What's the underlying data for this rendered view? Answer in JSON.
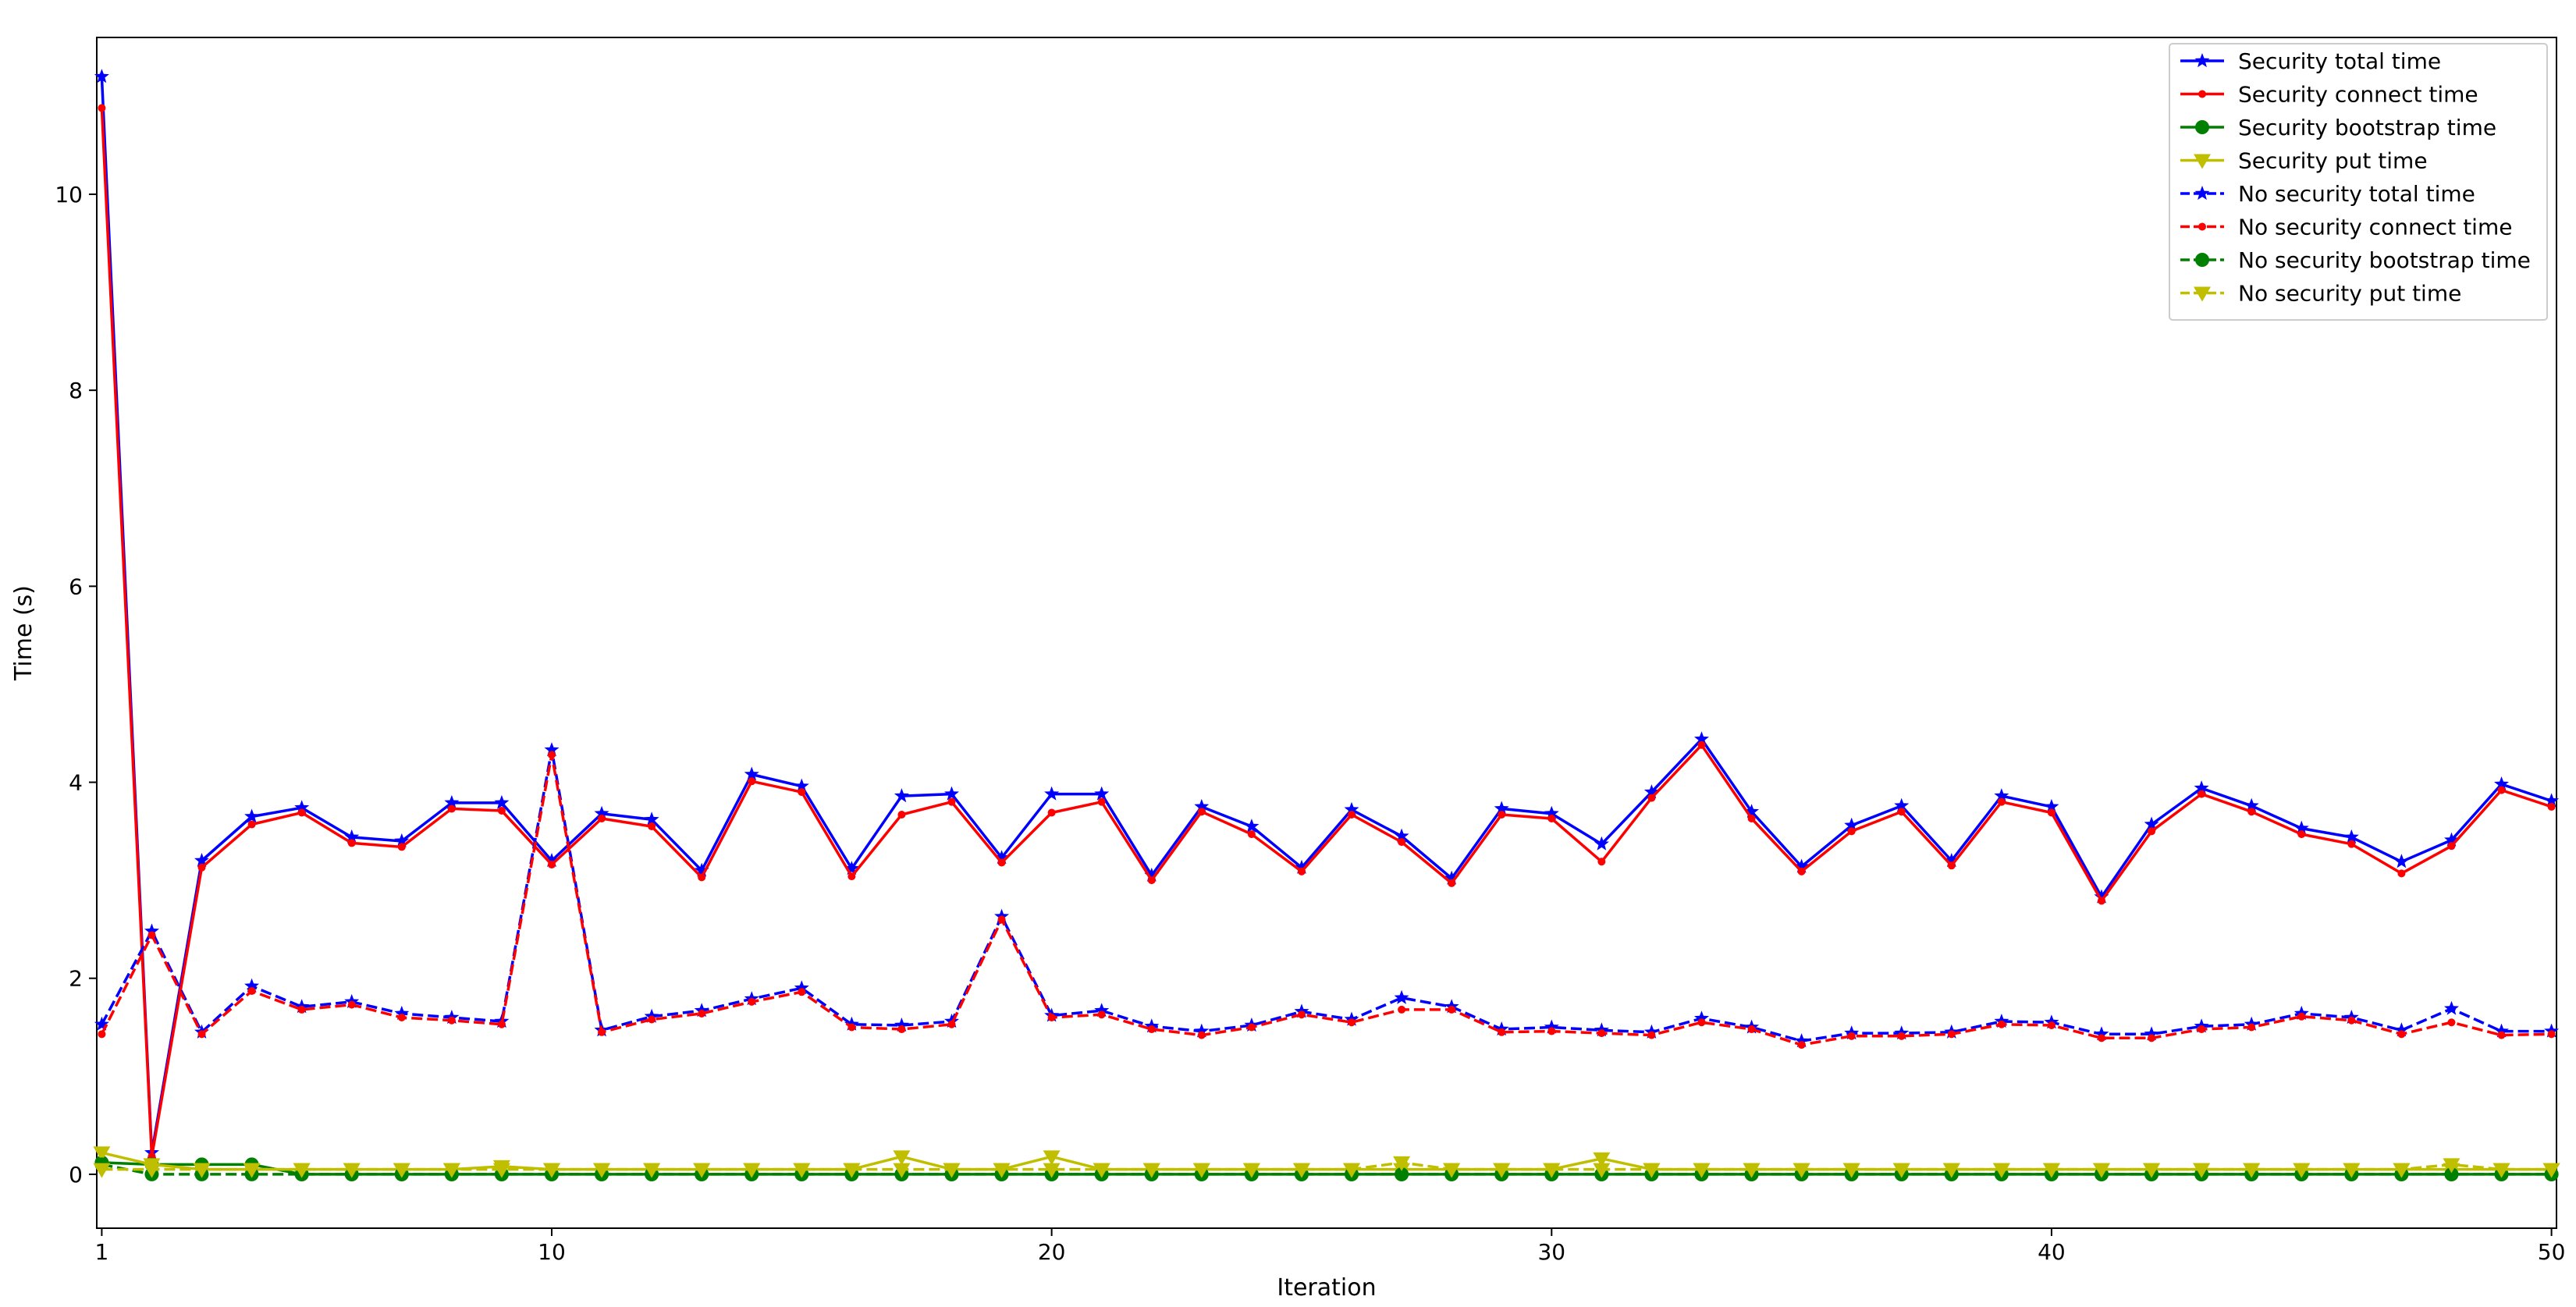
{
  "chart_data": {
    "type": "line",
    "title": "",
    "xlabel": "Iteration",
    "ylabel": "Time (s)",
    "xlim": [
      0.9,
      50.1
    ],
    "ylim": [
      -0.55,
      11.6
    ],
    "xticks": [
      1,
      10,
      20,
      30,
      40,
      50
    ],
    "yticks": [
      0,
      2,
      4,
      6,
      8,
      10
    ],
    "grid": false,
    "legend_position": "top-right",
    "x": [
      1,
      2,
      3,
      4,
      5,
      6,
      7,
      8,
      9,
      10,
      11,
      12,
      13,
      14,
      15,
      16,
      17,
      18,
      19,
      20,
      21,
      22,
      23,
      24,
      25,
      26,
      27,
      28,
      29,
      30,
      31,
      32,
      33,
      34,
      35,
      36,
      37,
      38,
      39,
      40,
      41,
      42,
      43,
      44,
      45,
      46,
      47,
      48,
      49,
      50
    ],
    "series": [
      {
        "name": "Security total time",
        "color": "#0000ff",
        "dash": "solid",
        "marker": "star",
        "values": [
          11.2,
          0.22,
          3.2,
          3.65,
          3.74,
          3.44,
          3.4,
          3.79,
          3.79,
          3.2,
          3.68,
          3.62,
          3.1,
          4.08,
          3.96,
          3.12,
          3.86,
          3.88,
          3.23,
          3.88,
          3.88,
          3.05,
          3.75,
          3.55,
          3.13,
          3.72,
          3.45,
          3.02,
          3.73,
          3.68,
          3.37,
          3.9,
          4.44,
          3.7,
          3.14,
          3.56,
          3.76,
          3.2,
          3.86,
          3.75,
          2.83,
          3.57,
          3.94,
          3.76,
          3.53,
          3.44,
          3.19,
          3.41,
          3.98,
          3.81
        ]
      },
      {
        "name": "Security connect time",
        "color": "#ff0000",
        "dash": "solid",
        "marker": "point",
        "values": [
          10.88,
          0.18,
          3.13,
          3.57,
          3.69,
          3.38,
          3.34,
          3.73,
          3.71,
          3.16,
          3.63,
          3.55,
          3.03,
          4.01,
          3.9,
          3.04,
          3.67,
          3.8,
          3.18,
          3.69,
          3.8,
          3.0,
          3.7,
          3.47,
          3.09,
          3.67,
          3.39,
          2.97,
          3.67,
          3.63,
          3.19,
          3.84,
          4.38,
          3.63,
          3.09,
          3.5,
          3.7,
          3.15,
          3.8,
          3.69,
          2.79,
          3.5,
          3.88,
          3.7,
          3.47,
          3.37,
          3.07,
          3.35,
          3.92,
          3.75
        ]
      },
      {
        "name": "Security bootstrap time",
        "color": "#008000",
        "dash": "solid",
        "marker": "circle",
        "values": [
          0.12,
          0.1,
          0.1,
          0.1,
          0.0,
          0.0,
          0.0,
          0.0,
          0.0,
          0.0,
          0.0,
          0.0,
          0.0,
          0.0,
          0.0,
          0.0,
          0.0,
          0.0,
          0.0,
          0.0,
          0.0,
          0.0,
          0.0,
          0.0,
          0.0,
          0.0,
          0.0,
          0.0,
          0.0,
          0.0,
          0.0,
          0.0,
          0.0,
          0.0,
          0.0,
          0.0,
          0.0,
          0.0,
          0.0,
          0.0,
          0.0,
          0.0,
          0.0,
          0.0,
          0.0,
          0.0,
          0.0,
          0.0,
          0.0,
          0.0
        ]
      },
      {
        "name": "Security put time",
        "color": "#bfbf00",
        "dash": "solid",
        "marker": "triangle-down",
        "values": [
          0.22,
          0.1,
          0.05,
          0.05,
          0.05,
          0.05,
          0.05,
          0.05,
          0.08,
          0.05,
          0.05,
          0.05,
          0.05,
          0.05,
          0.05,
          0.05,
          0.18,
          0.05,
          0.05,
          0.18,
          0.05,
          0.05,
          0.05,
          0.05,
          0.05,
          0.05,
          0.05,
          0.05,
          0.05,
          0.05,
          0.16,
          0.05,
          0.05,
          0.05,
          0.05,
          0.05,
          0.05,
          0.05,
          0.05,
          0.05,
          0.05,
          0.05,
          0.05,
          0.05,
          0.05,
          0.05,
          0.05,
          0.05,
          0.05,
          0.05
        ]
      },
      {
        "name": "No security total time",
        "color": "#0000ff",
        "dash": "dashed",
        "marker": "star",
        "values": [
          1.53,
          2.48,
          1.45,
          1.92,
          1.71,
          1.76,
          1.64,
          1.6,
          1.56,
          4.33,
          1.47,
          1.61,
          1.67,
          1.79,
          1.9,
          1.53,
          1.52,
          1.56,
          2.63,
          1.62,
          1.67,
          1.51,
          1.46,
          1.52,
          1.66,
          1.58,
          1.8,
          1.71,
          1.48,
          1.5,
          1.47,
          1.45,
          1.59,
          1.5,
          1.36,
          1.44,
          1.44,
          1.45,
          1.56,
          1.55,
          1.43,
          1.43,
          1.51,
          1.53,
          1.64,
          1.6,
          1.47,
          1.69,
          1.46,
          1.46
        ]
      },
      {
        "name": "No security connect time",
        "color": "#ff0000",
        "dash": "dashed",
        "marker": "point",
        "values": [
          1.43,
          2.44,
          1.43,
          1.87,
          1.68,
          1.73,
          1.6,
          1.57,
          1.53,
          4.28,
          1.45,
          1.58,
          1.64,
          1.76,
          1.86,
          1.5,
          1.48,
          1.53,
          2.6,
          1.6,
          1.63,
          1.48,
          1.42,
          1.5,
          1.63,
          1.55,
          1.68,
          1.68,
          1.45,
          1.46,
          1.44,
          1.42,
          1.55,
          1.48,
          1.32,
          1.41,
          1.41,
          1.43,
          1.53,
          1.52,
          1.39,
          1.39,
          1.48,
          1.5,
          1.61,
          1.57,
          1.43,
          1.55,
          1.42,
          1.43
        ]
      },
      {
        "name": "No security bootstrap time",
        "color": "#008000",
        "dash": "dashed",
        "marker": "circle",
        "values": [
          0.1,
          0.0,
          0.0,
          0.0,
          0.0,
          0.0,
          0.0,
          0.0,
          0.0,
          0.0,
          0.0,
          0.0,
          0.0,
          0.0,
          0.0,
          0.0,
          0.0,
          0.0,
          0.0,
          0.0,
          0.0,
          0.0,
          0.0,
          0.0,
          0.0,
          0.0,
          0.0,
          0.0,
          0.0,
          0.0,
          0.0,
          0.0,
          0.0,
          0.0,
          0.0,
          0.0,
          0.0,
          0.0,
          0.0,
          0.0,
          0.0,
          0.0,
          0.0,
          0.0,
          0.0,
          0.0,
          0.0,
          0.0,
          0.0,
          0.0
        ]
      },
      {
        "name": "No security put time",
        "color": "#bfbf00",
        "dash": "dashed",
        "marker": "triangle-down",
        "values": [
          0.05,
          0.05,
          0.05,
          0.05,
          0.05,
          0.05,
          0.05,
          0.05,
          0.05,
          0.05,
          0.05,
          0.05,
          0.05,
          0.05,
          0.05,
          0.05,
          0.05,
          0.05,
          0.05,
          0.05,
          0.05,
          0.05,
          0.05,
          0.05,
          0.05,
          0.05,
          0.12,
          0.05,
          0.05,
          0.05,
          0.05,
          0.05,
          0.05,
          0.05,
          0.05,
          0.05,
          0.05,
          0.05,
          0.05,
          0.05,
          0.05,
          0.05,
          0.05,
          0.05,
          0.05,
          0.05,
          0.05,
          0.1,
          0.05,
          0.05
        ]
      }
    ]
  }
}
